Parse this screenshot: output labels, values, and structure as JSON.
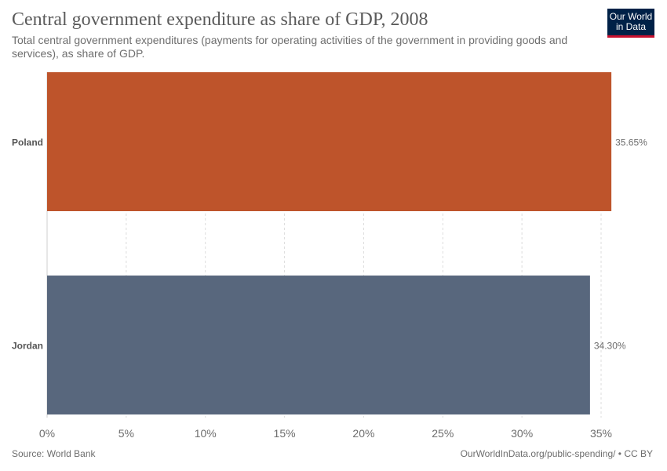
{
  "header": {
    "title": "Central government expenditure as share of GDP, 2008",
    "subtitle": "Total central government expenditures (payments for operating activities of the government in providing goods and services), as share of GDP.",
    "logo_text": "Our World in Data",
    "logo_bg": "#002147",
    "logo_accent": "#c8102e"
  },
  "footer": {
    "source": "Source: World Bank",
    "credit": "OurWorldInData.org/public-spending/ • CC BY"
  },
  "chart_data": {
    "type": "bar",
    "orientation": "horizontal",
    "categories": [
      "Poland",
      "Jordan"
    ],
    "values": [
      35.65,
      34.3
    ],
    "value_labels": [
      "35.65%",
      "34.30%"
    ],
    "colors": [
      "#be542b",
      "#58677d"
    ],
    "xlim": [
      0,
      35
    ],
    "ticks": [
      0,
      5,
      10,
      15,
      20,
      25,
      30,
      35
    ],
    "tick_labels": [
      "0%",
      "5%",
      "10%",
      "15%",
      "20%",
      "25%",
      "30%",
      "35%"
    ],
    "grid": true
  }
}
